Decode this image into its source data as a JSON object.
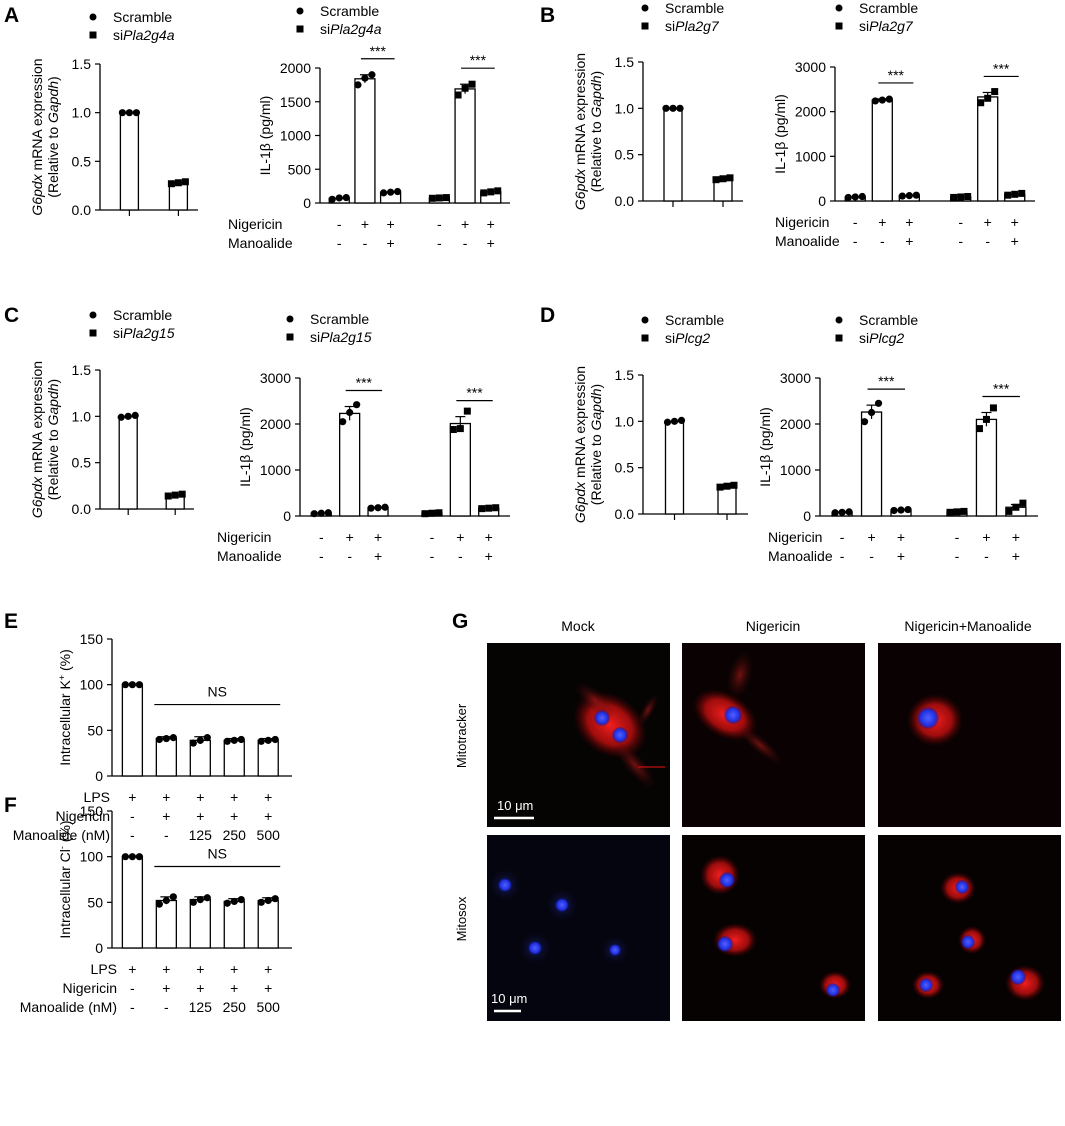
{
  "colors": {
    "mark": "#000000",
    "bar_fill": "#ffffff",
    "image_bg": "#050505",
    "mitotracker": "#e01010",
    "nucleus": "#2b3cff"
  },
  "chart_data": [
    {
      "panel": "A",
      "type": "bar",
      "legend": [
        "Scramble",
        "siPla2g4a"
      ],
      "categories": [
        "Scramble",
        "siPla2g4a"
      ],
      "values": [
        1.0,
        0.28
      ],
      "points": [
        [
          1.0,
          1.0,
          1.0
        ],
        [
          0.27,
          0.28,
          0.29
        ]
      ],
      "ylabel": "G6pdx mRNA expression (Relative to Gapdh)",
      "ylim": [
        0,
        1.5
      ],
      "yticks": [
        0.0,
        0.5,
        1.0,
        1.5
      ]
    },
    {
      "panel": "A",
      "type": "bar",
      "legend": [
        "Scramble",
        "siPla2g4a"
      ],
      "values": [
        70,
        1840,
        160,
        75,
        1690,
        165
      ],
      "errors": [
        0,
        60,
        0,
        0,
        70,
        0
      ],
      "points": [
        [
          55,
          75,
          80
        ],
        [
          1750,
          1850,
          1900
        ],
        [
          150,
          160,
          170
        ],
        [
          70,
          75,
          80
        ],
        [
          1600,
          1700,
          1760
        ],
        [
          150,
          165,
          180
        ]
      ],
      "ylabel": "IL-1β (pg/ml)",
      "ylim": [
        0,
        2000
      ],
      "yticks": [
        0,
        500,
        1000,
        1500,
        2000
      ],
      "row_labels": [
        "Nigericin",
        "Manoalide"
      ],
      "nigericin": [
        "-",
        "+",
        "+",
        "-",
        "+",
        "+"
      ],
      "manoalide": [
        "-",
        "-",
        "+",
        "-",
        "-",
        "+"
      ],
      "significance": [
        {
          "from": 1,
          "to": 2,
          "label": "***"
        },
        {
          "from": 4,
          "to": 5,
          "label": "***"
        }
      ]
    },
    {
      "panel": "B",
      "type": "bar",
      "legend": [
        "Scramble",
        "siPla2g7"
      ],
      "categories": [
        "Scramble",
        "siPla2g7"
      ],
      "values": [
        1.0,
        0.24
      ],
      "points": [
        [
          1.0,
          1.0,
          1.0
        ],
        [
          0.23,
          0.24,
          0.25
        ]
      ],
      "ylabel": "G6pdx mRNA expression (Relative to Gapdh)",
      "ylim": [
        0,
        1.5
      ],
      "yticks": [
        0.0,
        0.5,
        1.0,
        1.5
      ]
    },
    {
      "panel": "B",
      "type": "bar",
      "legend": [
        "Scramble",
        "siPla2g7"
      ],
      "values": [
        90,
        2260,
        120,
        90,
        2330,
        150
      ],
      "errors": [
        0,
        25,
        0,
        0,
        100,
        0
      ],
      "points": [
        [
          80,
          90,
          100
        ],
        [
          2240,
          2260,
          2280
        ],
        [
          110,
          120,
          130
        ],
        [
          80,
          90,
          100
        ],
        [
          2200,
          2300,
          2450
        ],
        [
          130,
          150,
          170
        ]
      ],
      "ylabel": "IL-1β (pg/ml)",
      "ylim": [
        0,
        3000
      ],
      "yticks": [
        0,
        1000,
        2000,
        3000
      ],
      "row_labels": [
        "Nigericin",
        "Manoalide"
      ],
      "nigericin": [
        "-",
        "+",
        "+",
        "-",
        "+",
        "+"
      ],
      "manoalide": [
        "-",
        "-",
        "+",
        "-",
        "-",
        "+"
      ],
      "significance": [
        {
          "from": 1,
          "to": 2,
          "label": "***"
        },
        {
          "from": 4,
          "to": 5,
          "label": "***"
        }
      ]
    },
    {
      "panel": "C",
      "type": "bar",
      "legend": [
        "Scramble",
        "siPla2g15"
      ],
      "categories": [
        "Scramble",
        "siPla2g15"
      ],
      "values": [
        1.0,
        0.15
      ],
      "points": [
        [
          0.99,
          1.0,
          1.01
        ],
        [
          0.14,
          0.15,
          0.16
        ]
      ],
      "ylabel": "G6pdx mRNA expression (Relative to Gapdh)",
      "ylim": [
        0,
        1.5
      ],
      "yticks": [
        0.0,
        0.5,
        1.0,
        1.5
      ]
    },
    {
      "panel": "C",
      "type": "bar",
      "legend": [
        "Scramble",
        "siPla2g15"
      ],
      "values": [
        60,
        2230,
        180,
        60,
        2010,
        170
      ],
      "errors": [
        0,
        150,
        0,
        0,
        150,
        0
      ],
      "points": [
        [
          50,
          60,
          70
        ],
        [
          2050,
          2250,
          2420
        ],
        [
          170,
          180,
          190
        ],
        [
          50,
          60,
          70
        ],
        [
          1880,
          1900,
          2280
        ],
        [
          160,
          170,
          180
        ]
      ],
      "ylabel": "IL-1β (pg/ml)",
      "ylim": [
        0,
        3000
      ],
      "yticks": [
        0,
        1000,
        2000,
        3000
      ],
      "row_labels": [
        "Nigericin",
        "Manoalide"
      ],
      "nigericin": [
        "-",
        "+",
        "+",
        "-",
        "+",
        "+"
      ],
      "manoalide": [
        "-",
        "-",
        "+",
        "-",
        "-",
        "+"
      ],
      "significance": [
        {
          "from": 1,
          "to": 2,
          "label": "***"
        },
        {
          "from": 4,
          "to": 5,
          "label": "***"
        }
      ]
    },
    {
      "panel": "D",
      "type": "bar",
      "legend": [
        "Scramble",
        "siPlcg2"
      ],
      "categories": [
        "Scramble",
        "siPlcg2"
      ],
      "values": [
        1.0,
        0.3
      ],
      "points": [
        [
          0.99,
          1.0,
          1.01
        ],
        [
          0.29,
          0.3,
          0.31
        ]
      ],
      "ylabel": "G6pdx mRNA expression (Relative to Gapdh)",
      "ylim": [
        0,
        1.5
      ],
      "yticks": [
        0.0,
        0.5,
        1.0,
        1.5
      ]
    },
    {
      "panel": "D",
      "type": "bar",
      "legend": [
        "Scramble",
        "siPlcg2"
      ],
      "values": [
        80,
        2260,
        130,
        90,
        2100,
        190
      ],
      "errors": [
        0,
        150,
        0,
        0,
        150,
        60
      ],
      "points": [
        [
          70,
          80,
          90
        ],
        [
          2050,
          2250,
          2450
        ],
        [
          120,
          130,
          140
        ],
        [
          80,
          90,
          100
        ],
        [
          1900,
          2100,
          2350
        ],
        [
          100,
          190,
          280
        ]
      ],
      "ylabel": "IL-1β (pg/ml)",
      "ylim": [
        0,
        3000
      ],
      "yticks": [
        0,
        1000,
        2000,
        3000
      ],
      "row_labels": [
        "Nigericin",
        "Manoalide"
      ],
      "nigericin": [
        "-",
        "+",
        "+",
        "-",
        "+",
        "+"
      ],
      "manoalide": [
        "-",
        "-",
        "+",
        "-",
        "-",
        "+"
      ],
      "significance": [
        {
          "from": 1,
          "to": 2,
          "label": "***"
        },
        {
          "from": 4,
          "to": 5,
          "label": "***"
        }
      ]
    },
    {
      "panel": "E",
      "type": "bar",
      "values": [
        100,
        41,
        39,
        39,
        39
      ],
      "errors": [
        0,
        2,
        4,
        2,
        2
      ],
      "points": [
        [
          100,
          100,
          100
        ],
        [
          40,
          41,
          42
        ],
        [
          36,
          39,
          42
        ],
        [
          38,
          39,
          40
        ],
        [
          38,
          39,
          40
        ]
      ],
      "ylabel": "Intracellular K+ (%)",
      "ylim": [
        0,
        150
      ],
      "yticks": [
        0,
        50,
        100,
        150
      ],
      "row_labels": [
        "LPS",
        "Nigericin",
        "Manoalide (nM)"
      ],
      "rows": [
        [
          "+",
          "+",
          "+",
          "+",
          "+"
        ],
        [
          "-",
          "+",
          "+",
          "+",
          "+"
        ],
        [
          "-",
          "-",
          "125",
          "250",
          "500"
        ]
      ],
      "ns": {
        "from": 1,
        "to": 4,
        "label": "NS"
      }
    },
    {
      "panel": "F",
      "type": "bar",
      "values": [
        100,
        52,
        53,
        51,
        52
      ],
      "errors": [
        0,
        4,
        3,
        3,
        3
      ],
      "points": [
        [
          100,
          100,
          100
        ],
        [
          48,
          52,
          56
        ],
        [
          50,
          53,
          55
        ],
        [
          49,
          51,
          53
        ],
        [
          50,
          52,
          54
        ]
      ],
      "ylabel": "Intracellular Cl- (%)",
      "ylim": [
        0,
        150
      ],
      "yticks": [
        0,
        50,
        100,
        150
      ],
      "row_labels": [
        "LPS",
        "Nigericin",
        "Manoalide (nM)"
      ],
      "rows": [
        [
          "+",
          "+",
          "+",
          "+",
          "+"
        ],
        [
          "-",
          "+",
          "+",
          "+",
          "+"
        ],
        [
          "-",
          "-",
          "125",
          "250",
          "500"
        ]
      ],
      "ns": {
        "from": 1,
        "to": 4,
        "label": "NS"
      }
    }
  ],
  "panel_g": {
    "letter": "G",
    "columns": [
      "Mock",
      "Nigericin",
      "Nigericin+Manoalide"
    ],
    "rows": [
      "Mitotracker",
      "Mitosox"
    ],
    "scale_bar": "10 μm"
  }
}
